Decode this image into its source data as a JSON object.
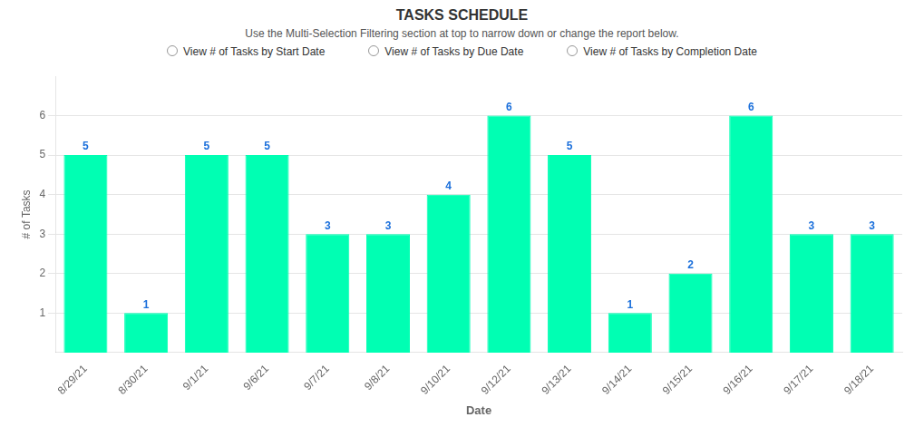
{
  "chart_data": {
    "type": "bar",
    "title": "TASKS SCHEDULE",
    "subtitle": "Use the Multi-Selection Filtering section at top to narrow down or change the report below.",
    "annotations": [
      "View # of Tasks by Start Date",
      "View # of Tasks by Due Date",
      "View # of Tasks by Completion Date"
    ],
    "xlabel": "Date",
    "ylabel": "# of Tasks",
    "categories": [
      "8/29/21",
      "8/30/21",
      "9/1/21",
      "9/6/21",
      "9/7/21",
      "9/8/21",
      "9/10/21",
      "9/12/21",
      "9/13/21",
      "9/14/21",
      "9/15/21",
      "9/16/21",
      "9/17/21",
      "9/18/21"
    ],
    "values": [
      5,
      1,
      5,
      5,
      3,
      3,
      4,
      6,
      5,
      1,
      2,
      6,
      3,
      3
    ],
    "color": "#00FFB3",
    "ylim": [
      0,
      7
    ],
    "yticks": [
      1,
      2,
      3,
      4,
      5,
      6
    ],
    "grid": true,
    "data_labels": true
  }
}
